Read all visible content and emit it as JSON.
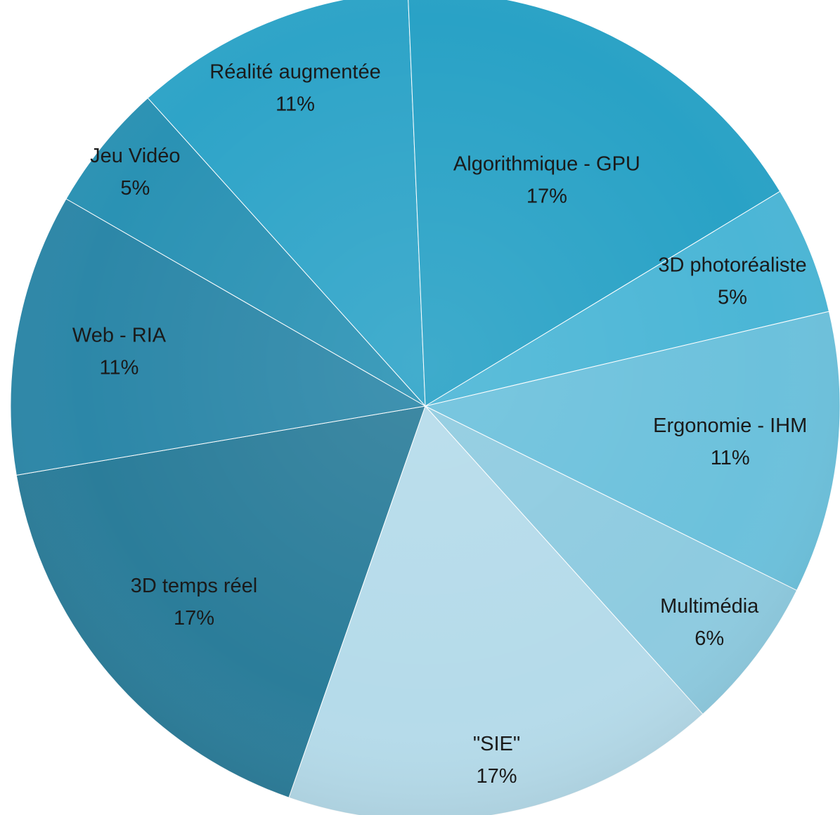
{
  "chart_data": {
    "type": "pie",
    "slices": [
      {
        "label": "Réalité augmentée",
        "value": 11,
        "value_text": "11%",
        "color": "#2ea4c8"
      },
      {
        "label": "Algorithmique - GPU",
        "value": 17,
        "value_text": "17%",
        "color": "#29a2c6"
      },
      {
        "label": "3D photoréaliste",
        "value": 5,
        "value_text": "5%",
        "color": "#4bb6d6"
      },
      {
        "label": "Ergonomie - IHM",
        "value": 11,
        "value_text": "11%",
        "color": "#6cc1dc"
      },
      {
        "label": "Multimédia",
        "value": 6,
        "value_text": "6%",
        "color": "#8ecbe0"
      },
      {
        "label": "\"SIE\"",
        "value": 17,
        "value_text": "17%",
        "color": "#b5dbea"
      },
      {
        "label": "3D temps réel",
        "value": 17,
        "value_text": "17%",
        "color": "#2b7d9a"
      },
      {
        "label": "Web - RIA",
        "value": 11,
        "value_text": "11%",
        "color": "#2c87a8"
      },
      {
        "label": "Jeu Vidéo",
        "value": 5,
        "value_text": "5%",
        "color": "#2a92b4"
      }
    ]
  }
}
